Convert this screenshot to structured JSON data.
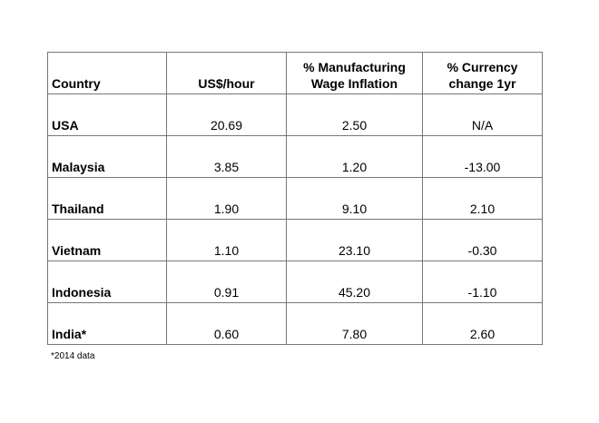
{
  "table": {
    "header": [
      "Country",
      "US$/hour",
      "% Manufacturing\nWage Inflation",
      "% Currency\nchange 1yr"
    ],
    "rows": [
      [
        "USA",
        "20.69",
        "2.50",
        "N/A"
      ],
      [
        "Malaysia",
        "3.85",
        "1.20",
        "-13.00"
      ],
      [
        "Thailand",
        "1.90",
        "9.10",
        "2.10"
      ],
      [
        "Vietnam",
        "1.10",
        "23.10",
        "-0.30"
      ],
      [
        "Indonesia",
        "0.91",
        "45.20",
        "-1.10"
      ],
      [
        "India*",
        "0.60",
        "7.80",
        "2.60"
      ]
    ]
  },
  "footnote": "*2014 data"
}
